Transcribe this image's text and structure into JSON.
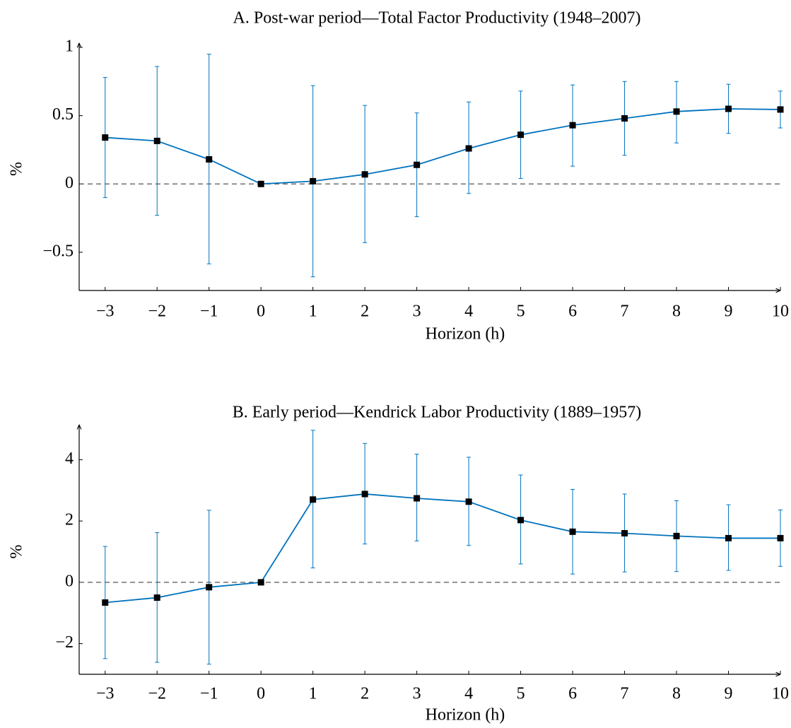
{
  "chart_data": [
    {
      "type": "line",
      "title": "A. Post-war period—Total Factor Productivity (1948–2007)",
      "x_label": "Horizon (h)",
      "y_label": "%",
      "x": [
        -3,
        -2,
        -1,
        0,
        1,
        2,
        3,
        4,
        5,
        6,
        7,
        8,
        9,
        10
      ],
      "values": [
        0.34,
        0.315,
        0.18,
        0,
        0.02,
        0.07,
        0.14,
        0.26,
        0.36,
        0.43,
        0.48,
        0.53,
        0.55,
        0.545
      ],
      "ci_low": [
        -0.1,
        -0.23,
        -0.585,
        null,
        -0.68,
        -0.43,
        -0.24,
        -0.07,
        0.04,
        0.13,
        0.21,
        0.3,
        0.37,
        0.41
      ],
      "ci_high": [
        0.78,
        0.86,
        0.95,
        null,
        0.72,
        0.575,
        0.52,
        0.6,
        0.68,
        0.725,
        0.75,
        0.75,
        0.73,
        0.68
      ],
      "color": "#0072bd",
      "marker_color": "#000000",
      "reference_line": 0,
      "xlim": [
        -3.5,
        10
      ],
      "ylim": [
        -0.78,
        1
      ],
      "xticks": [
        {
          "value": -3,
          "label": "−3"
        },
        {
          "value": -2,
          "label": "−2"
        },
        {
          "value": -1,
          "label": "−1"
        },
        0,
        1,
        2,
        3,
        4,
        5,
        6,
        7,
        8,
        9,
        10
      ],
      "yticks": [
        {
          "value": -0.5,
          "label": "−0.5"
        },
        0,
        0.5,
        1
      ]
    },
    {
      "type": "line",
      "title": "B. Early period—Kendrick Labor Productivity (1889–1957)",
      "x_label": "Horizon (h)",
      "y_label": "%",
      "x": [
        -3,
        -2,
        -1,
        0,
        1,
        2,
        3,
        4,
        5,
        6,
        7,
        8,
        9,
        10
      ],
      "values": [
        -0.66,
        -0.5,
        -0.16,
        0,
        2.7,
        2.88,
        2.74,
        2.63,
        2.03,
        1.65,
        1.6,
        1.51,
        1.44,
        1.44
      ],
      "ci_low": [
        -2.49,
        -2.61,
        -2.67,
        null,
        0.47,
        1.25,
        1.35,
        1.2,
        0.6,
        0.27,
        0.34,
        0.35,
        0.39,
        0.52
      ],
      "ci_high": [
        1.17,
        1.62,
        2.35,
        null,
        4.96,
        4.53,
        4.18,
        4.08,
        3.5,
        3.03,
        2.88,
        2.66,
        2.53,
        2.36
      ],
      "color": "#0072bd",
      "marker_color": "#000000",
      "reference_line": 0,
      "xlim": [
        -3.5,
        10
      ],
      "ylim": [
        -3,
        5
      ],
      "xticks": [
        {
          "value": -3,
          "label": "−3"
        },
        {
          "value": -2,
          "label": "−2"
        },
        {
          "value": -1,
          "label": "−1"
        },
        0,
        1,
        2,
        3,
        4,
        5,
        6,
        7,
        8,
        9,
        10
      ],
      "yticks": [
        {
          "value": -2,
          "label": "−2"
        },
        0,
        2,
        4
      ]
    }
  ]
}
